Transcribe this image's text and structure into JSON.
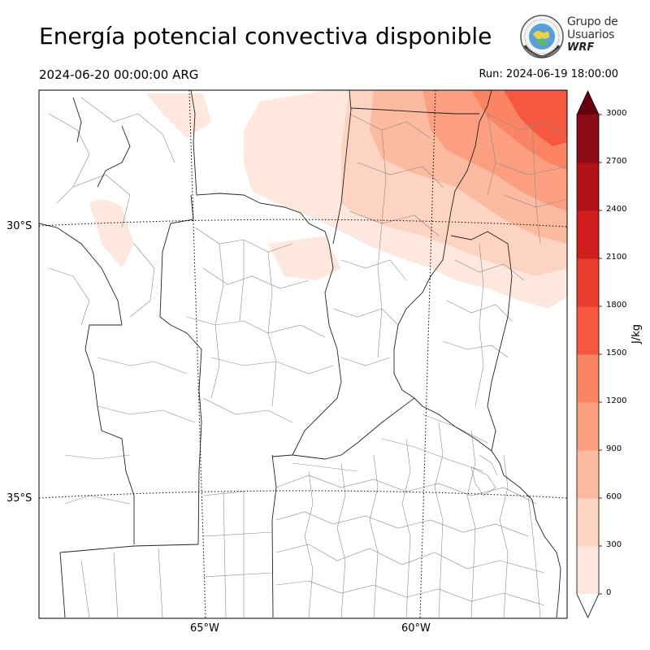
{
  "title": "Energía potencial convectiva disponible",
  "valid_time": "2024-06-20 00:00:00 ARG",
  "run_time": "Run: 2024-06-19 18:00:00",
  "logo": {
    "line1": "Grupo de",
    "line2": "Usuarios",
    "line3": "WRF"
  },
  "map": {
    "lat_labels": [
      "30°S",
      "35°S"
    ],
    "lon_labels": [
      "65°W",
      "60°W"
    ]
  },
  "colorbar": {
    "unit": "J/kg",
    "ticks": [
      "0",
      "300",
      "600",
      "900",
      "1200",
      "1500",
      "1800",
      "2100",
      "2400",
      "2700",
      "3000"
    ],
    "levels": [
      {
        "from": 0,
        "to": 300,
        "color": "#fee8de"
      },
      {
        "from": 300,
        "to": 600,
        "color": "#fdd4c2"
      },
      {
        "from": 600,
        "to": 900,
        "color": "#fcbba0"
      },
      {
        "from": 900,
        "to": 1200,
        "color": "#fc9f81"
      },
      {
        "from": 1200,
        "to": 1500,
        "color": "#fb8464"
      },
      {
        "from": 1500,
        "to": 1800,
        "color": "#f6583f"
      },
      {
        "from": 1800,
        "to": 2100,
        "color": "#e83c2f"
      },
      {
        "from": 2100,
        "to": 2400,
        "color": "#d11e1f"
      },
      {
        "from": 2400,
        "to": 2700,
        "color": "#b11218"
      },
      {
        "from": 2700,
        "to": 3000,
        "color": "#8c0b14"
      }
    ],
    "under_color": "#ffffff",
    "over_color": "#67000d"
  }
}
